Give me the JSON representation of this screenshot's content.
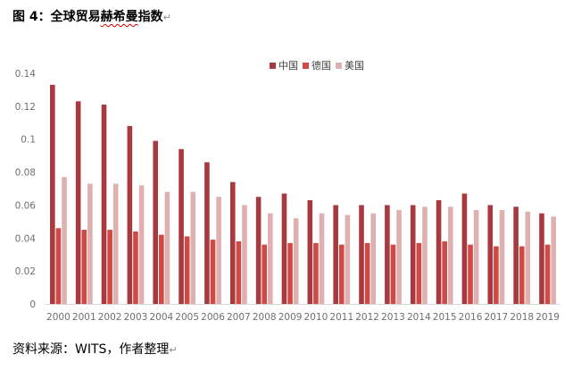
{
  "title_prefix": "图 4：全球贸易",
  "title_squiggle_1": "赫希",
  "title_squiggle_2": "曼",
  "title_suffix": "指数",
  "return_mark": "↵",
  "source": "资料来源：WITS，作者整理",
  "chart_data": {
    "type": "bar",
    "title": "",
    "xlabel": "",
    "ylabel": "",
    "categories": [
      "2000",
      "2001",
      "2002",
      "2003",
      "2004",
      "2005",
      "2006",
      "2007",
      "2008",
      "2009",
      "2010",
      "2011",
      "2012",
      "2013",
      "2014",
      "2015",
      "2016",
      "2017",
      "2018",
      "2019"
    ],
    "ylim": [
      0,
      0.14
    ],
    "yticks": [
      "0",
      "0.02",
      "0.04",
      "0.06",
      "0.08",
      "0.1",
      "0.12",
      "0.14"
    ],
    "grid": false,
    "legend_position": "top",
    "series": [
      {
        "name": "中国",
        "color": "#a83a3f",
        "values": [
          0.133,
          0.123,
          0.121,
          0.108,
          0.099,
          0.094,
          0.086,
          0.074,
          0.065,
          0.067,
          0.063,
          0.06,
          0.06,
          0.06,
          0.06,
          0.063,
          0.067,
          0.06,
          0.059,
          0.055
        ]
      },
      {
        "name": "德国",
        "color": "#cf4a45",
        "values": [
          0.046,
          0.045,
          0.045,
          0.044,
          0.042,
          0.041,
          0.039,
          0.038,
          0.036,
          0.037,
          0.037,
          0.036,
          0.037,
          0.036,
          0.037,
          0.038,
          0.036,
          0.035,
          0.035,
          0.036
        ]
      },
      {
        "name": "美国",
        "color": "#deb0b0",
        "values": [
          0.077,
          0.073,
          0.073,
          0.072,
          0.068,
          0.068,
          0.065,
          0.06,
          0.055,
          0.052,
          0.055,
          0.054,
          0.055,
          0.057,
          0.059,
          0.059,
          0.057,
          0.057,
          0.056,
          0.053
        ]
      }
    ]
  }
}
